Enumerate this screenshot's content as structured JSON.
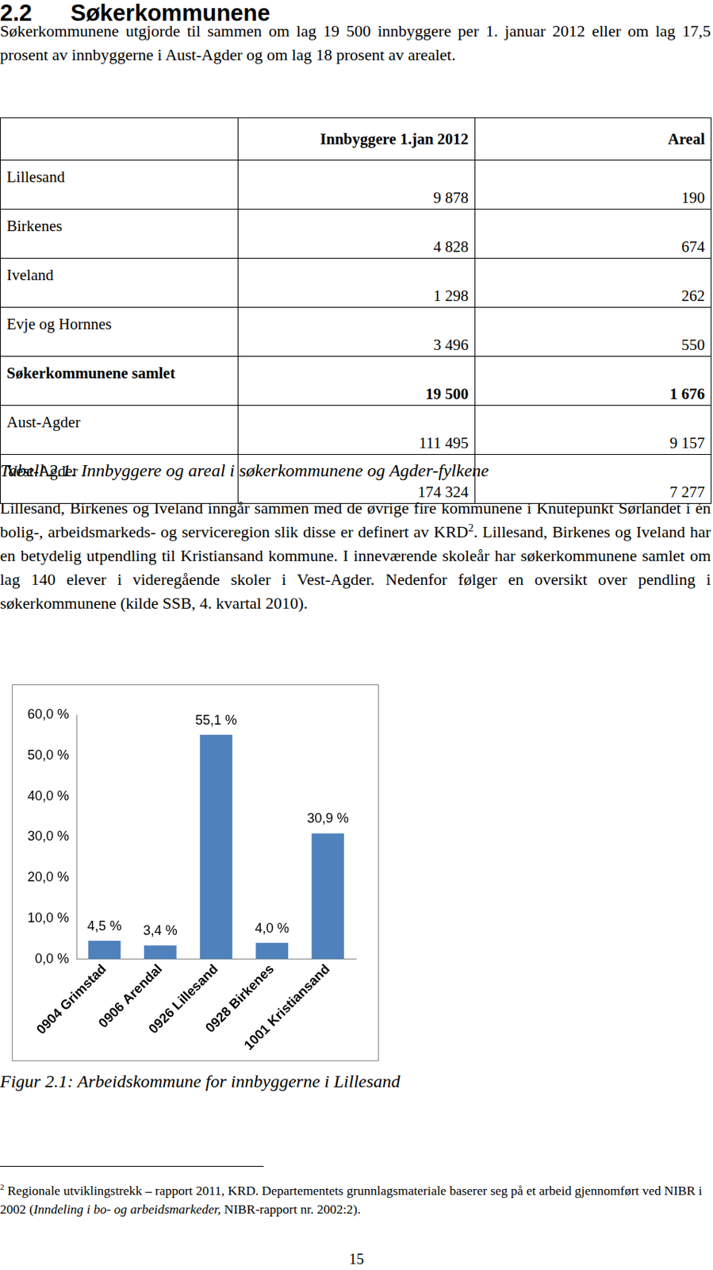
{
  "heading": {
    "number": "2.2",
    "title": "Søkerkommunene"
  },
  "paragraph1": "Søkerkommunene utgjorde til sammen om lag 19 500 innbyggere per 1. januar 2012 eller om lag 17,5 prosent av innbyggerne i Aust-Agder og om lag 18 prosent av arealet.",
  "table": {
    "header": [
      "Innbyggere 1.jan 2012",
      "Areal"
    ],
    "rows": [
      [
        "Lillesand",
        "9 878",
        "190"
      ],
      [
        "Birkenes",
        "4 828",
        "674"
      ],
      [
        "Iveland",
        "1 298",
        "262"
      ],
      [
        "Evje og Hornnes",
        "3 496",
        "550"
      ],
      [
        "Søkerkommunene samlet",
        "19 500",
        "1 676"
      ],
      [
        "Aust-Agder",
        "111 495",
        "9 157"
      ],
      [
        "Vest-Agder",
        "174 324",
        "7 277"
      ]
    ],
    "bold_row": "Søkerkommunene samlet"
  },
  "table_caption": "Tabell 2.1: Innbyggere og areal i søkerkommunene og Agder-fylkene",
  "paragraph2": {
    "before": "Lillesand, Birkenes og Iveland inngår sammen med de øvrige fire kommunene i Knutepunkt Sørlandet i én bolig-, arbeidsmarkeds- og serviceregion slik disse er definert av KRD",
    "footnote_ref": "2",
    "after": ". Lillesand, Birkenes og Iveland har en betydelig utpendling til Kristiansand kommune. I inneværende skoleår har søkerkommunene samlet om lag 140 elever i videregående skoler i Vest-Agder. Nedenfor følger en oversikt over pendling i søkerkommunene (kilde SSB, 4. kvartal 2010)."
  },
  "chart_data": {
    "type": "bar",
    "categories": [
      "0904 Grimstad",
      "0906 Arendal",
      "0926 Lillesand",
      "0928 Birkenes",
      "1001 Kristiansand"
    ],
    "values": [
      4.5,
      3.4,
      55.1,
      4.0,
      30.9
    ],
    "value_labels": [
      "4,5 %",
      "3,4 %",
      "55,1 %",
      "4,0 %",
      "30,9 %"
    ],
    "color": "#4f81bd",
    "ylim": [
      0,
      60
    ],
    "yticks": [
      {
        "value": 0,
        "label": "0,0 %"
      },
      {
        "value": 10,
        "label": "10,0 %"
      },
      {
        "value": 20,
        "label": "20,0 %"
      },
      {
        "value": 30,
        "label": "30,0 %"
      },
      {
        "value": 40,
        "label": "40,0 %"
      },
      {
        "value": 50,
        "label": "50,0 %"
      },
      {
        "value": 60,
        "label": "60,0 %"
      }
    ],
    "grid": false,
    "data_labels": true
  },
  "figure_caption": "Figur 2.1: Arbeidskommune for innbyggerne i Lillesand",
  "footnote": {
    "mark": "2",
    "before": "Regionale utviklingstrekk – rapport 2011, KRD. Departementets grunnlagsmateriale baserer seg på et arbeid gjennomført ved NIBR i 2002 (",
    "italic": "Inndeling i bo- og arbeidsmarkeder,",
    "after": " NIBR-rapport nr. 2002:2)."
  },
  "page_number": "15"
}
